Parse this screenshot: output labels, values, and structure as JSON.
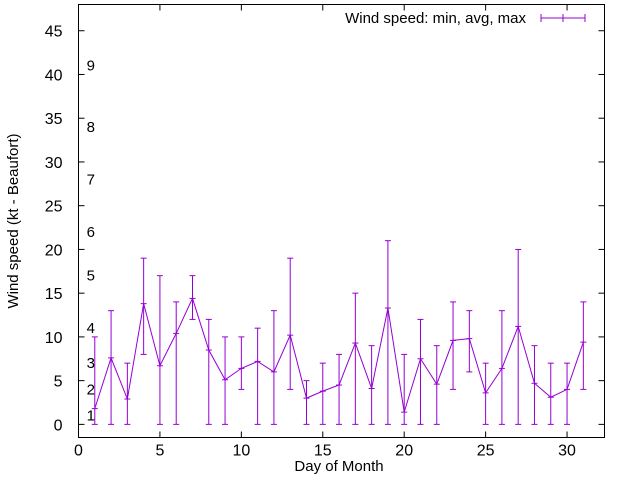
{
  "chart_data": {
    "type": "line-errorbar",
    "title": "",
    "xlabel": "Day of Month",
    "ylabel": "Wind speed (kt - Beaufort)",
    "xlim": [
      0,
      32.3
    ],
    "ylim": [
      -1.5,
      48
    ],
    "x_ticks": [
      0,
      5,
      10,
      15,
      20,
      25,
      30
    ],
    "y_ticks": [
      0,
      5,
      10,
      15,
      20,
      25,
      30,
      35,
      40,
      45
    ],
    "grid": false,
    "legend_position": "top-right",
    "series": [
      {
        "name": "Wind speed: min, avg, max",
        "color": "#9400d3",
        "x": [
          1,
          2,
          3,
          4,
          5,
          6,
          7,
          8,
          9,
          10,
          11,
          12,
          13,
          14,
          15,
          16,
          17,
          18,
          19,
          20,
          21,
          22,
          23,
          24,
          25,
          26,
          27,
          28,
          29,
          30,
          31
        ],
        "avg": [
          1.8,
          7.6,
          2.9,
          13.8,
          6.7,
          10.4,
          14.4,
          8.5,
          5.1,
          6.4,
          7.2,
          6.0,
          10.2,
          3.0,
          3.8,
          4.5,
          9.3,
          4.1,
          13.3,
          1.4,
          7.5,
          4.6,
          9.6,
          9.8,
          3.6,
          6.4,
          11.2,
          4.7,
          3.1,
          4.0,
          9.4
        ],
        "min": [
          0,
          0,
          0,
          8,
          0,
          0,
          12,
          0,
          0,
          4,
          0,
          0,
          4,
          0,
          0,
          0,
          0,
          0,
          0,
          0,
          0,
          0,
          4,
          6,
          0,
          0,
          0,
          0,
          0,
          0,
          4
        ],
        "max": [
          10,
          13,
          7,
          19,
          17,
          14,
          17,
          12,
          10,
          10,
          11,
          13,
          19,
          5,
          7,
          8,
          15,
          9,
          21,
          8,
          12,
          9,
          14,
          13,
          7,
          13,
          20,
          9,
          7,
          7,
          14
        ]
      }
    ],
    "annotations": [
      {
        "text": "1",
        "y": 1
      },
      {
        "text": "2",
        "y": 4
      },
      {
        "text": "3",
        "y": 7
      },
      {
        "text": "4",
        "y": 11
      },
      {
        "text": "5",
        "y": 17
      },
      {
        "text": "6",
        "y": 22
      },
      {
        "text": "7",
        "y": 28
      },
      {
        "text": "8",
        "y": 34
      },
      {
        "text": "9",
        "y": 41
      }
    ]
  }
}
